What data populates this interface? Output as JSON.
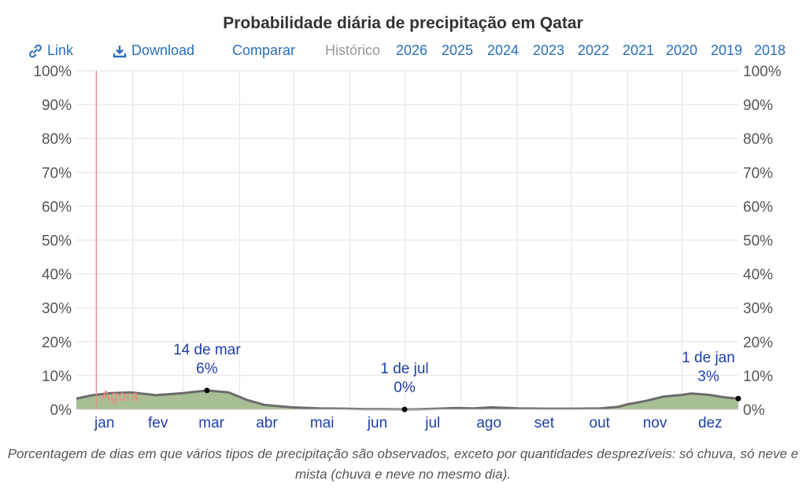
{
  "title": "Probabilidade diária de precipitação em Qatar",
  "toolbar": {
    "link_label": "Link",
    "download_label": "Download",
    "compare_label": "Comparar",
    "history_label": "Histórico",
    "years": [
      "2026",
      "2025",
      "2024",
      "2023",
      "2022",
      "2021",
      "2020",
      "2019",
      "2018"
    ]
  },
  "colors": {
    "fill": "#a8bf96",
    "line": "#6b6b6b",
    "now_line": "#e88a7e",
    "annotation": "#1f3fa8",
    "link": "#2a6ebb",
    "grid": "#e2e2e2"
  },
  "chart_data": {
    "type": "area",
    "title": "Probabilidade diária de precipitação em Qatar",
    "xlabel": "",
    "ylabel": "",
    "months": [
      "jan",
      "fev",
      "mar",
      "abr",
      "mai",
      "jun",
      "jul",
      "ago",
      "set",
      "out",
      "nov",
      "dez"
    ],
    "y_ticks": [
      "0%",
      "10%",
      "20%",
      "30%",
      "40%",
      "50%",
      "60%",
      "70%",
      "80%",
      "90%",
      "100%"
    ],
    "ylim": [
      0,
      100
    ],
    "xlim_days": [
      1,
      366
    ],
    "grid": true,
    "series": [
      {
        "name": "Precipitação",
        "x_day": [
          1,
          10,
          20,
          31,
          45,
          60,
          73,
          85,
          95,
          105,
          120,
          135,
          150,
          160,
          170,
          182,
          190,
          200,
          210,
          220,
          230,
          245,
          260,
          275,
          290,
          300,
          305,
          315,
          325,
          335,
          340,
          350,
          358,
          366
        ],
        "y_percent": [
          3.2,
          4.2,
          4.8,
          5.0,
          4.2,
          4.8,
          5.6,
          5.0,
          2.8,
          1.3,
          0.6,
          0.3,
          0.2,
          0.1,
          0.1,
          0.0,
          0.05,
          0.2,
          0.4,
          0.3,
          0.6,
          0.3,
          0.2,
          0.2,
          0.3,
          0.8,
          1.5,
          2.5,
          3.8,
          4.3,
          4.7,
          4.3,
          3.6,
          3.2
        ]
      }
    ],
    "now": {
      "day": 12,
      "label": "Agora"
    },
    "annotations": [
      {
        "day": 73,
        "value": 5.6,
        "line1": "14 de mar",
        "line2": "6%"
      },
      {
        "day": 182,
        "value": 0.0,
        "line1": "1 de jul",
        "line2": "0%"
      },
      {
        "day": 366,
        "value": 3.2,
        "line1": "1 de jan",
        "line2": "3%"
      }
    ]
  },
  "caption": "Porcentagem de dias em que vários tipos de precipitação são observados, exceto por quantidades desprezíveis: só chuva, só neve e mista (chuva e neve no mesmo dia)."
}
